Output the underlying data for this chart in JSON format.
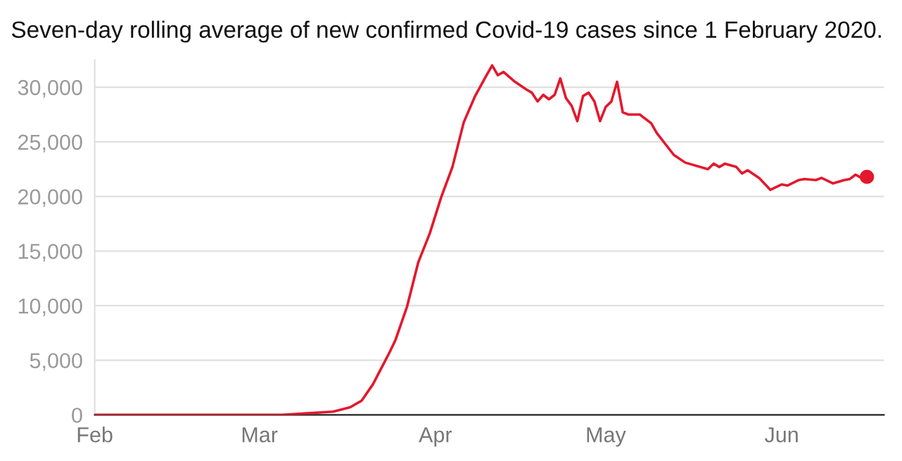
{
  "chart_data": {
    "type": "line",
    "title": "Seven-day rolling average of new confirmed Covid-19 cases since 1 February 2020.",
    "series": [
      {
        "color": "#e3182d",
        "x": [
          "2020-02-01",
          "2020-03-01",
          "2020-03-05",
          "2020-03-14",
          "2020-03-17",
          "2020-03-19",
          "2020-03-21",
          "2020-03-24",
          "2020-03-25",
          "2020-03-27",
          "2020-03-29",
          "2020-03-31",
          "2020-04-02",
          "2020-04-04",
          "2020-04-06",
          "2020-04-08",
          "2020-04-10",
          "2020-04-11",
          "2020-04-12",
          "2020-04-13",
          "2020-04-15",
          "2020-04-17",
          "2020-04-18",
          "2020-04-19",
          "2020-04-20",
          "2020-04-21",
          "2020-04-22",
          "2020-04-23",
          "2020-04-24",
          "2020-04-25",
          "2020-04-26",
          "2020-04-27",
          "2020-04-28",
          "2020-04-29",
          "2020-04-30",
          "2020-05-01",
          "2020-05-02",
          "2020-05-03",
          "2020-05-04",
          "2020-05-05",
          "2020-05-07",
          "2020-05-09",
          "2020-05-10",
          "2020-05-13",
          "2020-05-15",
          "2020-05-19",
          "2020-05-20",
          "2020-05-21",
          "2020-05-22",
          "2020-05-24",
          "2020-05-25",
          "2020-05-26",
          "2020-05-28",
          "2020-05-30",
          "2020-06-01",
          "2020-06-02",
          "2020-06-04",
          "2020-06-05",
          "2020-06-07",
          "2020-06-08",
          "2020-06-10",
          "2020-06-12",
          "2020-06-13",
          "2020-06-14",
          "2020-06-15",
          "2020-06-16"
        ],
        "values": [
          0,
          0,
          0,
          300,
          700,
          1300,
          2800,
          5800,
          6900,
          9900,
          14000,
          16600,
          19900,
          22700,
          26800,
          29200,
          31100,
          32000,
          31100,
          31400,
          30500,
          29800,
          29500,
          28700,
          29300,
          28900,
          29300,
          30800,
          29000,
          28300,
          26900,
          29200,
          29500,
          28700,
          26900,
          28200,
          28700,
          30500,
          27700,
          27500,
          27500,
          26700,
          25800,
          23800,
          23100,
          22500,
          23000,
          22700,
          23000,
          22700,
          22100,
          22400,
          21700,
          20600,
          21100,
          21000,
          21500,
          21600,
          21500,
          21700,
          21200,
          21500,
          21600,
          22000,
          21700,
          21800
        ]
      },
      {
        "type": "scatter",
        "color": "#e3182d",
        "marker": "circle",
        "x": [
          "2020-06-16"
        ],
        "values": [
          21800
        ]
      }
    ],
    "xlim": [
      "2020-02-01",
      "2020-06-19"
    ],
    "xticks": [
      {
        "value": "2020-02-01",
        "label": "Feb"
      },
      {
        "value": "2020-03-01",
        "label": "Mar"
      },
      {
        "value": "2020-04-01",
        "label": "Apr"
      },
      {
        "value": "2020-05-01",
        "label": "May"
      },
      {
        "value": "2020-06-01",
        "label": "Jun"
      }
    ],
    "ylim": [
      0,
      32500
    ],
    "yticks": [
      {
        "value": 0,
        "label": "0"
      },
      {
        "value": 5000,
        "label": "5,000"
      },
      {
        "value": 10000,
        "label": "10,000"
      },
      {
        "value": 15000,
        "label": "15,000"
      },
      {
        "value": 20000,
        "label": "20,000"
      },
      {
        "value": 25000,
        "label": "25,000"
      },
      {
        "value": 30000,
        "label": "30,000"
      }
    ],
    "grid": "y"
  }
}
